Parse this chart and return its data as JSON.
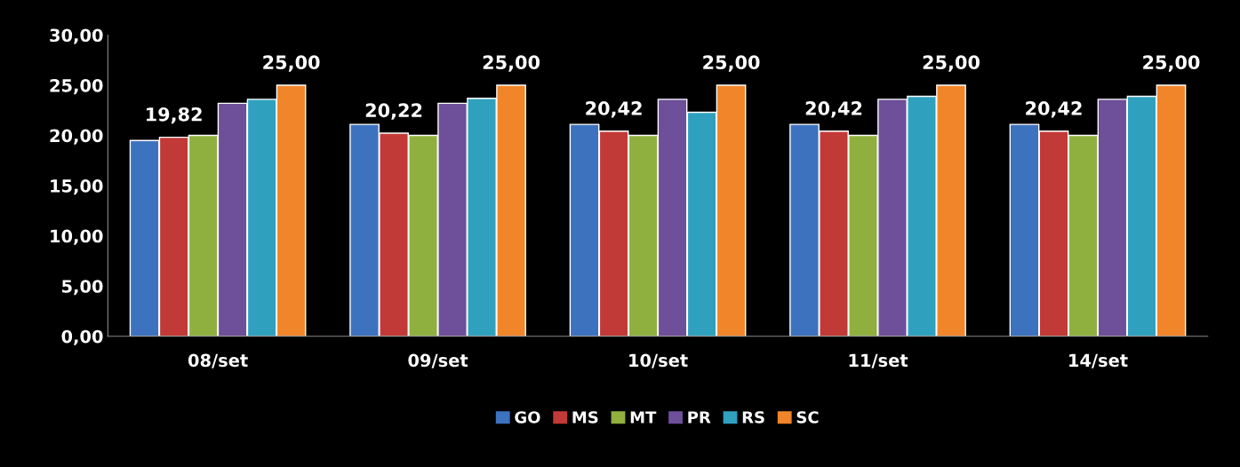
{
  "chart_data": {
    "type": "bar",
    "categories": [
      "08/set",
      "09/set",
      "10/set",
      "11/set",
      "14/set"
    ],
    "series": [
      {
        "name": "GO",
        "color": "#3d72bf",
        "values": [
          19.5,
          21.1,
          21.1,
          21.1,
          21.1
        ]
      },
      {
        "name": "MS",
        "color": "#c23a37",
        "values": [
          19.82,
          20.22,
          20.42,
          20.42,
          20.42
        ],
        "value_labels": [
          "19,82",
          "20,22",
          "20,42",
          "20,42",
          "20,42"
        ]
      },
      {
        "name": "MT",
        "color": "#8fb03e",
        "values": [
          20.0,
          20.0,
          20.0,
          20.0,
          20.0
        ]
      },
      {
        "name": "PR",
        "color": "#6e4f9a",
        "values": [
          23.2,
          23.2,
          23.6,
          23.6,
          23.6
        ]
      },
      {
        "name": "RS",
        "color": "#2fa1bf",
        "values": [
          23.6,
          23.7,
          22.3,
          23.9,
          23.9
        ]
      },
      {
        "name": "SC",
        "color": "#f1852a",
        "values": [
          25.0,
          25.0,
          25.0,
          25.0,
          25.0
        ],
        "value_labels": [
          "25,00",
          "25,00",
          "25,00",
          "25,00",
          "25,00"
        ]
      }
    ],
    "ylim": [
      0,
      30
    ],
    "yticks": [
      {
        "value": 0,
        "label": "0,00"
      },
      {
        "value": 5,
        "label": "5,00"
      },
      {
        "value": 10,
        "label": "10,00"
      },
      {
        "value": 15,
        "label": "15,00"
      },
      {
        "value": 20,
        "label": "20,00"
      },
      {
        "value": 25,
        "label": "25,00"
      },
      {
        "value": 30,
        "label": "30,00"
      }
    ],
    "grid": false,
    "legend": "bottom"
  }
}
